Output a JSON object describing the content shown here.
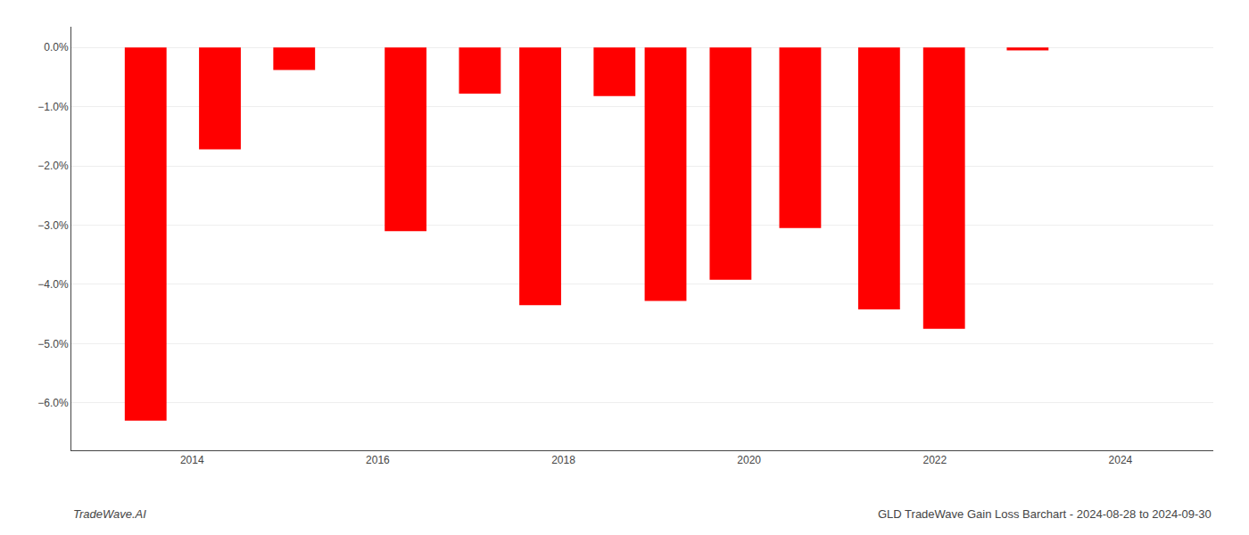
{
  "chart_data": {
    "type": "bar",
    "x": [
      2013.5,
      2014.3,
      2015.1,
      2016.3,
      2017.1,
      2017.75,
      2018.55,
      2019.1,
      2019.8,
      2020.55,
      2021.4,
      2022.1,
      2023.0
    ],
    "values": [
      -6.3,
      -1.72,
      -0.38,
      -3.1,
      -0.78,
      -4.35,
      -0.82,
      -4.28,
      -3.92,
      -3.05,
      -4.42,
      -4.75,
      -0.05
    ],
    "color": "#ff0000",
    "xlim": [
      2012.7,
      2025.0
    ],
    "xticks": [
      2014,
      2016,
      2018,
      2020,
      2022,
      2024
    ],
    "ylim": [
      -6.8,
      0.35
    ],
    "yticks": [
      {
        "value": 0.0,
        "label": "0.0%"
      },
      {
        "value": -1.0,
        "label": "−1.0%"
      },
      {
        "value": -2.0,
        "label": "−2.0%"
      },
      {
        "value": -3.0,
        "label": "−3.0%"
      },
      {
        "value": -4.0,
        "label": "−4.0%"
      },
      {
        "value": -5.0,
        "label": "−5.0%"
      },
      {
        "value": -6.0,
        "label": "−6.0%"
      }
    ],
    "grid": true,
    "annotations": [
      "TradeWave.AI",
      "GLD TradeWave Gain Loss Barchart - 2024-08-28 to 2024-09-30"
    ]
  }
}
